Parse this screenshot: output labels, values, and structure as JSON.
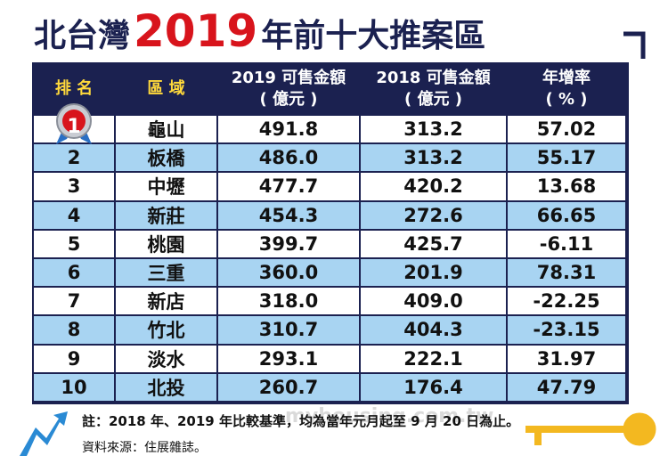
{
  "header": {
    "title_prefix": "北台灣",
    "title_year": "2019",
    "title_suffix": "年前十大推案區"
  },
  "table": {
    "columns": [
      [
        "排 名"
      ],
      [
        "區 域"
      ],
      [
        "2019 可售金額",
        "( 億元 )"
      ],
      [
        "2018 可售金額",
        "( 億元 )"
      ],
      [
        "年增率",
        "( % )"
      ]
    ],
    "rows": [
      [
        "1",
        "龜山",
        "491.8",
        "313.2",
        "57.02"
      ],
      [
        "2",
        "板橋",
        "486.0",
        "313.2",
        "55.17"
      ],
      [
        "3",
        "中壢",
        "477.7",
        "420.2",
        "13.68"
      ],
      [
        "4",
        "新莊",
        "454.3",
        "272.6",
        "66.65"
      ],
      [
        "5",
        "桃園",
        "399.7",
        "425.7",
        "-6.11"
      ],
      [
        "6",
        "三重",
        "360.0",
        "201.9",
        "78.31"
      ],
      [
        "7",
        "新店",
        "318.0",
        "409.0",
        "-22.25"
      ],
      [
        "8",
        "竹北",
        "310.7",
        "404.3",
        "-23.15"
      ],
      [
        "9",
        "淡水",
        "293.1",
        "222.1",
        "31.97"
      ],
      [
        "10",
        "北投",
        "260.7",
        "176.4",
        "47.79"
      ]
    ]
  },
  "footer": {
    "note": "註：2018 年、2019 年比較基準，均為當年元月起至 9 月 20 日為止。",
    "source": "資料來源：住展雜誌。",
    "watermark": "myhousing.com.tw"
  }
}
